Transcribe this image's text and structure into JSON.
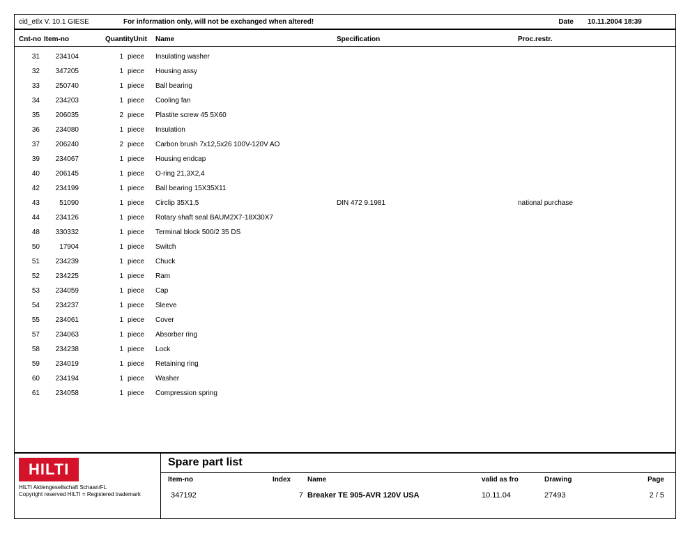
{
  "top": {
    "version": "cid_etlx V. 10.1   GIESE",
    "banner": "For information only, will not be exchanged when altered!",
    "date_label": "Date",
    "date_value": "10.11.2004 18:39"
  },
  "headers": {
    "cnt": "Cnt-no",
    "item": "Item-no",
    "qtyunit": "QuantityUnit",
    "name": "Name",
    "spec": "Specification",
    "proc": "Proc.restr."
  },
  "rows": [
    {
      "cnt": "31",
      "item": "234104",
      "qty": "1",
      "unit": "piece",
      "name": "Insulating washer",
      "spec": "",
      "proc": ""
    },
    {
      "cnt": "32",
      "item": "347205",
      "qty": "1",
      "unit": "piece",
      "name": "Housing assy",
      "spec": "",
      "proc": ""
    },
    {
      "cnt": "33",
      "item": "250740",
      "qty": "1",
      "unit": "piece",
      "name": "Ball bearing",
      "spec": "",
      "proc": ""
    },
    {
      "cnt": "34",
      "item": "234203",
      "qty": "1",
      "unit": "piece",
      "name": "Cooling fan",
      "spec": "",
      "proc": ""
    },
    {
      "cnt": "35",
      "item": "206035",
      "qty": "2",
      "unit": "piece",
      "name": "Plastite screw 45 5X60",
      "spec": "",
      "proc": ""
    },
    {
      "cnt": "36",
      "item": "234080",
      "qty": "1",
      "unit": "piece",
      "name": "Insulation",
      "spec": "",
      "proc": ""
    },
    {
      "cnt": "37",
      "item": "206240",
      "qty": "2",
      "unit": "piece",
      "name": "Carbon brush 7x12,5x26 100V-120V AO",
      "spec": "",
      "proc": ""
    },
    {
      "cnt": "39",
      "item": "234067",
      "qty": "1",
      "unit": "piece",
      "name": "Housing endcap",
      "spec": "",
      "proc": ""
    },
    {
      "cnt": "40",
      "item": "206145",
      "qty": "1",
      "unit": "piece",
      "name": "O-ring 21,3X2,4",
      "spec": "",
      "proc": ""
    },
    {
      "cnt": "42",
      "item": "234199",
      "qty": "1",
      "unit": "piece",
      "name": "Ball bearing 15X35X11",
      "spec": "",
      "proc": ""
    },
    {
      "cnt": "43",
      "item": "51090",
      "qty": "1",
      "unit": "piece",
      "name": "Circlip 35X1,5",
      "spec": "DIN 472     9.1981",
      "proc": "national purchase"
    },
    {
      "cnt": "44",
      "item": "234126",
      "qty": "1",
      "unit": "piece",
      "name": "Rotary shaft seal BAUM2X7-18X30X7",
      "spec": "",
      "proc": ""
    },
    {
      "cnt": "48",
      "item": "330332",
      "qty": "1",
      "unit": "piece",
      "name": "Terminal block 500/2 35 DS",
      "spec": "",
      "proc": ""
    },
    {
      "cnt": "50",
      "item": "17904",
      "qty": "1",
      "unit": "piece",
      "name": "Switch",
      "spec": "",
      "proc": ""
    },
    {
      "cnt": "51",
      "item": "234239",
      "qty": "1",
      "unit": "piece",
      "name": "Chuck",
      "spec": "",
      "proc": ""
    },
    {
      "cnt": "52",
      "item": "234225",
      "qty": "1",
      "unit": "piece",
      "name": "Ram",
      "spec": "",
      "proc": ""
    },
    {
      "cnt": "53",
      "item": "234059",
      "qty": "1",
      "unit": "piece",
      "name": "Cap",
      "spec": "",
      "proc": ""
    },
    {
      "cnt": "54",
      "item": "234237",
      "qty": "1",
      "unit": "piece",
      "name": "Sleeve",
      "spec": "",
      "proc": ""
    },
    {
      "cnt": "55",
      "item": "234061",
      "qty": "1",
      "unit": "piece",
      "name": "Cover",
      "spec": "",
      "proc": ""
    },
    {
      "cnt": "57",
      "item": "234063",
      "qty": "1",
      "unit": "piece",
      "name": "Absorber ring",
      "spec": "",
      "proc": ""
    },
    {
      "cnt": "58",
      "item": "234238",
      "qty": "1",
      "unit": "piece",
      "name": "Lock",
      "spec": "",
      "proc": ""
    },
    {
      "cnt": "59",
      "item": "234019",
      "qty": "1",
      "unit": "piece",
      "name": "Retaining ring",
      "spec": "",
      "proc": ""
    },
    {
      "cnt": "60",
      "item": "234194",
      "qty": "1",
      "unit": "piece",
      "name": "Washer",
      "spec": "",
      "proc": ""
    },
    {
      "cnt": "61",
      "item": "234058",
      "qty": "1",
      "unit": "piece",
      "name": "Compression spring",
      "spec": "",
      "proc": ""
    }
  ],
  "footer": {
    "logo": "HILTI",
    "company": "HILTI Aktiengesellschaft Schaan/FL",
    "copyright": "Copyright reserved HILTI = Registered trademark",
    "title": "Spare part list",
    "labels": {
      "item": "Item-no",
      "index": "Index",
      "name": "Name",
      "valid": "valid as fro",
      "drawing": "Drawing",
      "page": "Page"
    },
    "values": {
      "item": "347192",
      "index": "7",
      "name": "Breaker TE 905-AVR 120V USA",
      "valid": "10.11.04",
      "drawing": "27493",
      "page": "2   /   5"
    }
  }
}
